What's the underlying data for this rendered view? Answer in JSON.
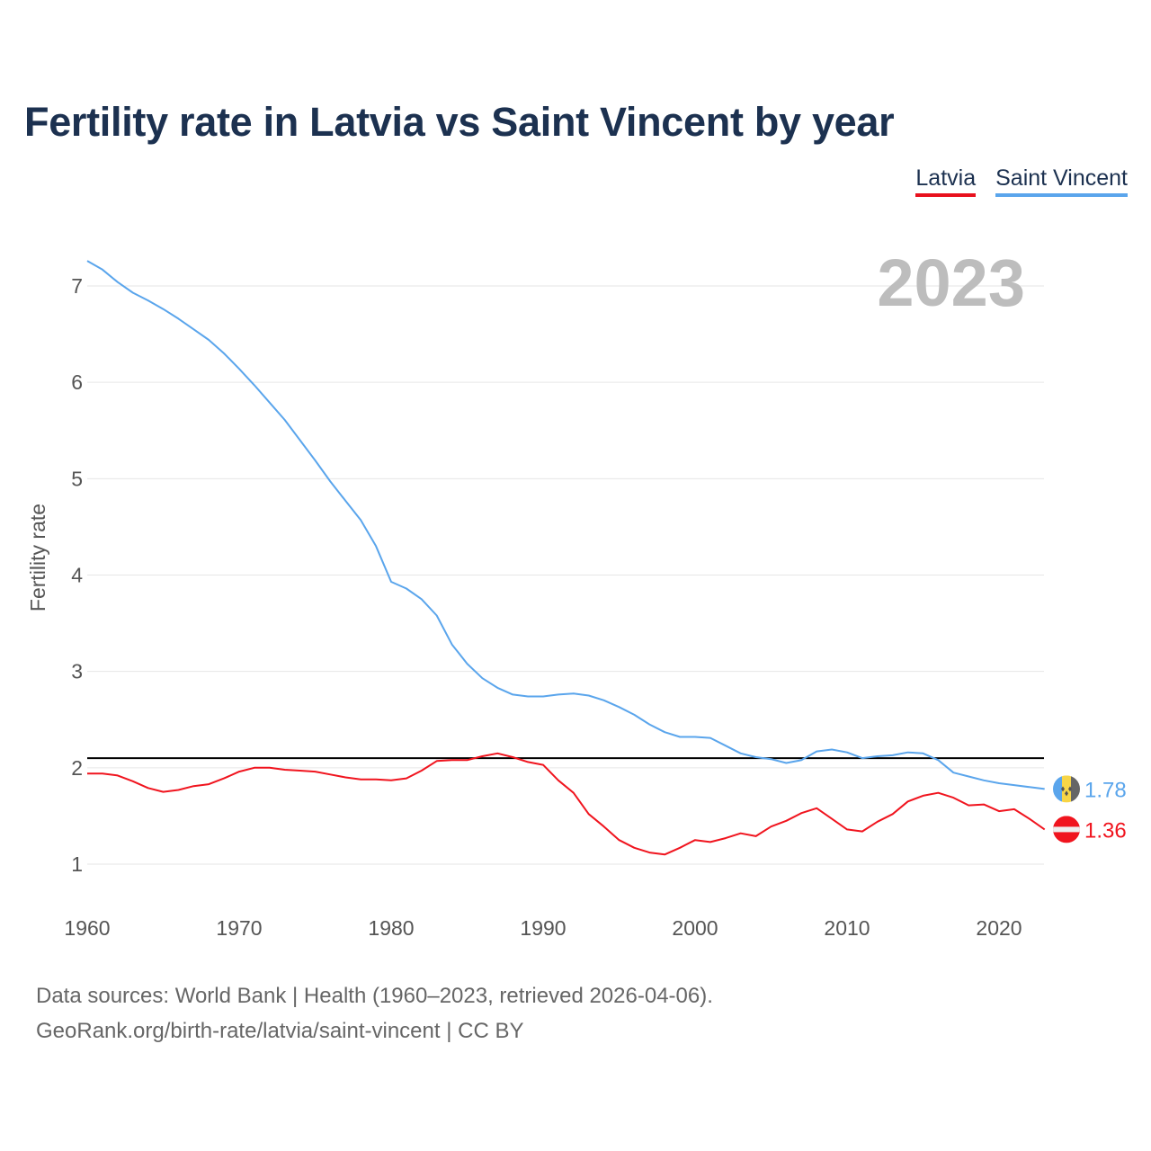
{
  "title": "Fertility rate in Latvia vs Saint Vincent by year",
  "legend": [
    {
      "label": "Latvia",
      "color": "#f0141e"
    },
    {
      "label": "Saint Vincent",
      "color": "#5aa5ec"
    }
  ],
  "year_watermark": "2023",
  "footer": {
    "line1": "Data sources: World Bank | Health (1960–2023, retrieved 2026-04-06).",
    "line2": "GeoRank.org/birth-rate/latvia/saint-vincent | CC BY"
  },
  "chart_data": {
    "type": "line",
    "title": "Fertility rate in Latvia vs Saint Vincent by year",
    "xlabel": "",
    "ylabel": "Fertility rate",
    "xlim": [
      1960,
      2023
    ],
    "ylim": [
      0.5,
      7.5
    ],
    "x_ticks": [
      1960,
      1970,
      1980,
      1990,
      2000,
      2010,
      2020
    ],
    "y_ticks": [
      1,
      2,
      3,
      4,
      5,
      6,
      7
    ],
    "grid": true,
    "legend_position": "top-right",
    "reference_line": 2.1,
    "x": [
      1960,
      1961,
      1962,
      1963,
      1964,
      1965,
      1966,
      1967,
      1968,
      1969,
      1970,
      1971,
      1972,
      1973,
      1974,
      1975,
      1976,
      1977,
      1978,
      1979,
      1980,
      1981,
      1982,
      1983,
      1984,
      1985,
      1986,
      1987,
      1988,
      1989,
      1990,
      1991,
      1992,
      1993,
      1994,
      1995,
      1996,
      1997,
      1998,
      1999,
      2000,
      2001,
      2002,
      2003,
      2004,
      2005,
      2006,
      2007,
      2008,
      2009,
      2010,
      2011,
      2012,
      2013,
      2014,
      2015,
      2016,
      2017,
      2018,
      2019,
      2020,
      2021,
      2022,
      2023
    ],
    "series": [
      {
        "name": "Latvia",
        "color": "#f0141e",
        "end_label": "1.36",
        "values": [
          1.94,
          1.94,
          1.92,
          1.86,
          1.79,
          1.75,
          1.77,
          1.81,
          1.83,
          1.89,
          1.96,
          2.0,
          2.0,
          1.98,
          1.97,
          1.96,
          1.93,
          1.9,
          1.88,
          1.88,
          1.87,
          1.89,
          1.97,
          2.07,
          2.08,
          2.08,
          2.12,
          2.15,
          2.11,
          2.06,
          2.03,
          1.87,
          1.74,
          1.52,
          1.39,
          1.25,
          1.17,
          1.12,
          1.1,
          1.17,
          1.25,
          1.23,
          1.27,
          1.32,
          1.29,
          1.39,
          1.45,
          1.53,
          1.58,
          1.47,
          1.36,
          1.34,
          1.44,
          1.52,
          1.65,
          1.71,
          1.74,
          1.69,
          1.61,
          1.62,
          1.55,
          1.57,
          1.47,
          1.36
        ]
      },
      {
        "name": "Saint Vincent",
        "color": "#5aa5ec",
        "end_label": "1.78",
        "values": [
          7.26,
          7.17,
          7.04,
          6.93,
          6.85,
          6.76,
          6.66,
          6.55,
          6.44,
          6.3,
          6.14,
          5.97,
          5.79,
          5.61,
          5.4,
          5.19,
          4.97,
          4.77,
          4.57,
          4.3,
          3.93,
          3.86,
          3.75,
          3.58,
          3.28,
          3.08,
          2.93,
          2.83,
          2.76,
          2.74,
          2.74,
          2.76,
          2.77,
          2.75,
          2.7,
          2.63,
          2.55,
          2.45,
          2.37,
          2.32,
          2.32,
          2.31,
          2.23,
          2.15,
          2.11,
          2.09,
          2.05,
          2.08,
          2.17,
          2.19,
          2.16,
          2.1,
          2.12,
          2.13,
          2.16,
          2.15,
          2.08,
          1.95,
          1.91,
          1.87,
          1.84,
          1.82,
          1.8,
          1.78
        ]
      }
    ]
  }
}
